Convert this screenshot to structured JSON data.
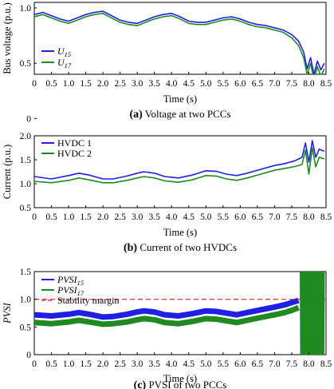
{
  "figure": {
    "colors": {
      "series1": "#1f1fe6",
      "series2": "#1f8a1f",
      "margin": "#e64040"
    }
  },
  "chart_data": [
    {
      "type": "line",
      "caption_letter": "(a)",
      "caption": "Voltage at two PCCs",
      "xlabel": "Time (s)",
      "ylabel": "Bus voltage (p.u.)",
      "xlim": [
        0,
        8.5
      ],
      "ylim": [
        0.4,
        1.05
      ],
      "xticks": [
        "0",
        "0.5",
        "1.0",
        "1.5",
        "2.0",
        "2.5",
        "3.0",
        "3.5",
        "4.0",
        "4.5",
        "5.0",
        "5.5",
        "6.0",
        "6.5",
        "7.0",
        "7.5",
        "8.0",
        "8.5"
      ],
      "yticks": [
        "0",
        "0.5",
        "1.0"
      ],
      "yticks_values": [
        0,
        0.5,
        1.0
      ],
      "legend_position": "lower-left",
      "series": [
        {
          "name": "U",
          "sub": "15",
          "color_key": "series1",
          "x": [
            0,
            0.25,
            0.5,
            0.75,
            1.0,
            1.25,
            1.5,
            1.75,
            2.0,
            2.25,
            2.5,
            2.75,
            3.0,
            3.25,
            3.5,
            3.75,
            4.0,
            4.25,
            4.5,
            4.75,
            5.0,
            5.25,
            5.5,
            5.75,
            6.0,
            6.25,
            6.5,
            6.75,
            7.0,
            7.25,
            7.5,
            7.7,
            7.85,
            7.95,
            8.05,
            8.15,
            8.25,
            8.35,
            8.45
          ],
          "y": [
            0.94,
            0.96,
            0.93,
            0.9,
            0.88,
            0.91,
            0.94,
            0.96,
            0.97,
            0.93,
            0.89,
            0.87,
            0.86,
            0.89,
            0.92,
            0.94,
            0.95,
            0.92,
            0.88,
            0.87,
            0.87,
            0.89,
            0.91,
            0.92,
            0.9,
            0.87,
            0.85,
            0.84,
            0.82,
            0.8,
            0.76,
            0.7,
            0.6,
            0.45,
            0.55,
            0.4,
            0.52,
            0.44,
            0.5
          ]
        },
        {
          "name": "U",
          "sub": "17",
          "color_key": "series2",
          "x": [
            0,
            0.25,
            0.5,
            0.75,
            1.0,
            1.25,
            1.5,
            1.75,
            2.0,
            2.25,
            2.5,
            2.75,
            3.0,
            3.25,
            3.5,
            3.75,
            4.0,
            4.25,
            4.5,
            4.75,
            5.0,
            5.25,
            5.5,
            5.75,
            6.0,
            6.25,
            6.5,
            6.75,
            7.0,
            7.25,
            7.5,
            7.7,
            7.85,
            7.95,
            8.05,
            8.15,
            8.25,
            8.35,
            8.45
          ],
          "y": [
            0.92,
            0.94,
            0.91,
            0.88,
            0.86,
            0.89,
            0.92,
            0.94,
            0.95,
            0.91,
            0.87,
            0.85,
            0.84,
            0.87,
            0.9,
            0.92,
            0.93,
            0.9,
            0.86,
            0.85,
            0.85,
            0.87,
            0.89,
            0.9,
            0.88,
            0.85,
            0.83,
            0.82,
            0.8,
            0.78,
            0.73,
            0.66,
            0.55,
            0.4,
            0.5,
            0.35,
            0.47,
            0.38,
            0.45
          ]
        }
      ]
    },
    {
      "type": "line",
      "caption_letter": "(b)",
      "caption": "Current of two HVDCs",
      "xlabel": "Time (s)",
      "ylabel": "Current (p.u.)",
      "xlim": [
        0,
        8.5
      ],
      "ylim": [
        0.5,
        2.0
      ],
      "xticks": [
        "0",
        "0.5",
        "1.0",
        "1.5",
        "2.0",
        "2.5",
        "3.0",
        "3.5",
        "4.0",
        "4.5",
        "5.0",
        "5.5",
        "6.0",
        "6.5",
        "7.0",
        "7.5",
        "8.0",
        "8.5"
      ],
      "yticks": [
        "0.5",
        "1.0",
        "1.5",
        "2.0"
      ],
      "yticks_values": [
        0.5,
        1.0,
        1.5,
        2.0
      ],
      "legend_position": "top-left",
      "series": [
        {
          "name": "HVDC 1",
          "color_key": "series1",
          "x": [
            0,
            0.5,
            1.0,
            1.3,
            1.6,
            2.0,
            2.3,
            2.7,
            3.0,
            3.2,
            3.5,
            3.8,
            4.2,
            4.6,
            5.0,
            5.3,
            5.6,
            5.9,
            6.2,
            6.6,
            7.0,
            7.3,
            7.6,
            7.8,
            7.9,
            8.0,
            8.1,
            8.2,
            8.3,
            8.45
          ],
          "y": [
            1.15,
            1.1,
            1.17,
            1.22,
            1.18,
            1.1,
            1.1,
            1.16,
            1.22,
            1.25,
            1.22,
            1.15,
            1.12,
            1.18,
            1.27,
            1.26,
            1.2,
            1.17,
            1.22,
            1.3,
            1.38,
            1.42,
            1.48,
            1.55,
            1.85,
            1.45,
            1.9,
            1.55,
            1.72,
            1.68
          ]
        },
        {
          "name": "HVDC 2",
          "color_key": "series2",
          "x": [
            0,
            0.5,
            1.0,
            1.3,
            1.6,
            2.0,
            2.3,
            2.7,
            3.0,
            3.2,
            3.5,
            3.8,
            4.2,
            4.6,
            5.0,
            5.3,
            5.6,
            5.9,
            6.2,
            6.6,
            7.0,
            7.3,
            7.6,
            7.8,
            7.9,
            8.0,
            8.1,
            8.2,
            8.3,
            8.45
          ],
          "y": [
            1.05,
            1.02,
            1.07,
            1.12,
            1.08,
            1.02,
            1.02,
            1.07,
            1.12,
            1.15,
            1.12,
            1.06,
            1.03,
            1.08,
            1.17,
            1.16,
            1.1,
            1.07,
            1.12,
            1.2,
            1.28,
            1.32,
            1.36,
            1.4,
            1.7,
            1.2,
            1.75,
            1.35,
            1.55,
            1.52
          ]
        }
      ]
    },
    {
      "type": "line",
      "caption_letter": "(c)",
      "caption": "PVSI of two PCCs",
      "xlabel": "Time (s)",
      "ylabel": "PVSI",
      "xlim": [
        0,
        8.5
      ],
      "ylim": [
        0,
        1.5
      ],
      "xticks": [
        "0",
        "0.5",
        "1.0",
        "1.5",
        "2.0",
        "2.5",
        "3.0",
        "3.5",
        "4.0",
        "4.5",
        "5.0",
        "5.5",
        "6.0",
        "6.5",
        "7.0",
        "7.5",
        "8.0",
        "8.5"
      ],
      "yticks": [
        "0",
        "0.5",
        "1.0",
        "1.5"
      ],
      "yticks_values": [
        0,
        0.5,
        1.0,
        1.5
      ],
      "legend_position": "top-left",
      "series": [
        {
          "name": "PVSI",
          "sub": "15",
          "color_key": "series1",
          "x": [
            0,
            0.5,
            1.0,
            1.3,
            1.6,
            2.0,
            2.3,
            2.7,
            3.0,
            3.2,
            3.5,
            3.8,
            4.2,
            4.6,
            5.0,
            5.3,
            5.6,
            5.9,
            6.2,
            6.6,
            7.0,
            7.3,
            7.5,
            7.7
          ],
          "y": [
            0.72,
            0.7,
            0.73,
            0.76,
            0.73,
            0.68,
            0.69,
            0.73,
            0.77,
            0.79,
            0.77,
            0.72,
            0.7,
            0.74,
            0.79,
            0.78,
            0.75,
            0.72,
            0.76,
            0.81,
            0.86,
            0.9,
            0.94,
            0.98
          ]
        },
        {
          "name": "PVSI",
          "sub": "17",
          "color_key": "series2",
          "x": [
            0,
            0.5,
            1.0,
            1.3,
            1.6,
            2.0,
            2.3,
            2.7,
            3.0,
            3.2,
            3.5,
            3.8,
            4.2,
            4.6,
            5.0,
            5.3,
            5.6,
            5.9,
            6.2,
            6.6,
            7.0,
            7.3,
            7.5,
            7.7
          ],
          "y": [
            0.58,
            0.56,
            0.59,
            0.62,
            0.59,
            0.55,
            0.56,
            0.59,
            0.63,
            0.65,
            0.63,
            0.58,
            0.56,
            0.6,
            0.65,
            0.64,
            0.61,
            0.58,
            0.62,
            0.67,
            0.72,
            0.76,
            0.8,
            0.85
          ]
        },
        {
          "name": "Stability margin",
          "color_key": "margin",
          "dashed": true,
          "x": [
            0,
            8.5
          ],
          "y": [
            1.0,
            1.0
          ]
        }
      ]
    }
  ]
}
